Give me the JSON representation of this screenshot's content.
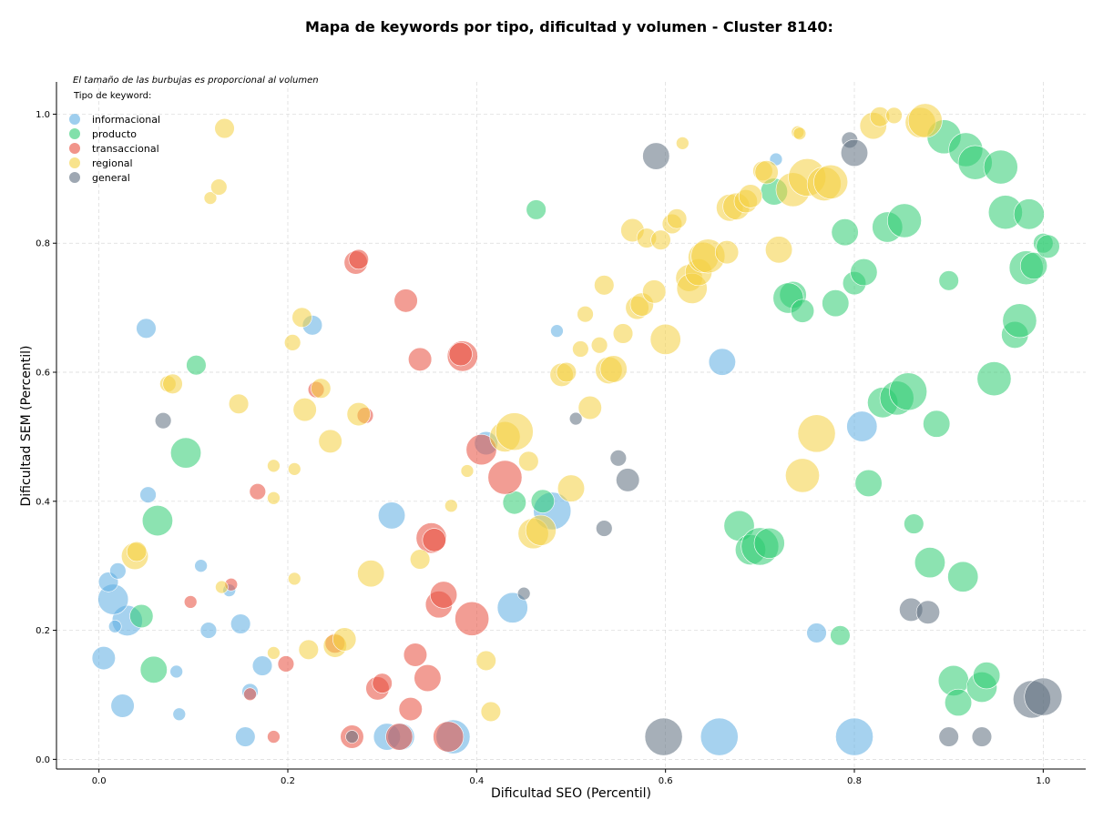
{
  "chart_data": {
    "type": "scatter",
    "title": "Mapa de keywords por tipo, dificultad y volumen - Cluster 8140:",
    "xlabel": "Dificultad SEO (Percentil)",
    "ylabel": "Dificultad SEM (Percentil)",
    "xlim": [
      -0.045,
      1.045
    ],
    "ylim": [
      -0.015,
      1.05
    ],
    "xticks": [
      "0.0",
      "0.2",
      "0.4",
      "0.6",
      "0.8",
      "1.0"
    ],
    "yticks": [
      "0.0",
      "0.2",
      "0.4",
      "0.6",
      "0.8",
      "1.0"
    ],
    "grid": true,
    "legend_position": "top-left",
    "note": "El tamaño de las burbujas es proporcional al volumen",
    "legend_title": "Tipo de keyword:",
    "series": [
      {
        "name": "informacional",
        "color": "#5DADE2",
        "points": [
          [
            0.005,
            0.157,
            2
          ],
          [
            0.025,
            0.083,
            2
          ],
          [
            0.03,
            0.215,
            3
          ],
          [
            0.015,
            0.248,
            3
          ],
          [
            0.01,
            0.275,
            1.5
          ],
          [
            0.02,
            0.292,
            1
          ],
          [
            0.017,
            0.206,
            0.5
          ],
          [
            0.052,
            0.41,
            1
          ],
          [
            0.05,
            0.668,
            1.5
          ],
          [
            0.082,
            0.136,
            0.5
          ],
          [
            0.085,
            0.07,
            0.5
          ],
          [
            0.108,
            0.3,
            0.5
          ],
          [
            0.116,
            0.2,
            1
          ],
          [
            0.138,
            0.262,
            0.5
          ],
          [
            0.15,
            0.21,
            1.5
          ],
          [
            0.16,
            0.105,
            1
          ],
          [
            0.173,
            0.145,
            1.5
          ],
          [
            0.155,
            0.035,
            1.5
          ],
          [
            0.226,
            0.673,
            1.5
          ],
          [
            0.305,
            0.035,
            2.5
          ],
          [
            0.31,
            0.378,
            2.5
          ],
          [
            0.32,
            0.035,
            2.5
          ],
          [
            0.375,
            0.035,
            3.5
          ],
          [
            0.41,
            0.49,
            2
          ],
          [
            0.438,
            0.235,
            3
          ],
          [
            0.48,
            0.385,
            4
          ],
          [
            0.485,
            0.664,
            0.5
          ],
          [
            0.657,
            0.035,
            4
          ],
          [
            0.66,
            0.616,
            2.5
          ],
          [
            0.717,
            0.93,
            0.5
          ],
          [
            0.76,
            0.196,
            1.5
          ],
          [
            0.8,
            0.035,
            4
          ],
          [
            0.808,
            0.516,
            3
          ]
        ]
      },
      {
        "name": "producto",
        "color": "#2ECC71",
        "points": [
          [
            0.045,
            0.222,
            2
          ],
          [
            0.058,
            0.139,
            2.5
          ],
          [
            0.062,
            0.37,
            3
          ],
          [
            0.092,
            0.475,
            3
          ],
          [
            0.103,
            0.611,
            1.5
          ],
          [
            0.44,
            0.398,
            2
          ],
          [
            0.47,
            0.4,
            2
          ],
          [
            0.463,
            0.852,
            1.5
          ],
          [
            0.678,
            0.362,
            3
          ],
          [
            0.69,
            0.325,
            3
          ],
          [
            0.7,
            0.33,
            4
          ],
          [
            0.71,
            0.335,
            3
          ],
          [
            0.715,
            0.88,
            2.5
          ],
          [
            0.735,
            0.72,
            2.5
          ],
          [
            0.73,
            0.715,
            3
          ],
          [
            0.745,
            0.695,
            2
          ],
          [
            0.78,
            0.707,
            2.5
          ],
          [
            0.785,
            0.192,
            1.5
          ],
          [
            0.79,
            0.817,
            2.5
          ],
          [
            0.8,
            0.738,
            2
          ],
          [
            0.81,
            0.755,
            2.5
          ],
          [
            0.815,
            0.428,
            2.5
          ],
          [
            0.83,
            0.553,
            3
          ],
          [
            0.835,
            0.825,
            3
          ],
          [
            0.845,
            0.56,
            3.5
          ],
          [
            0.853,
            0.835,
            3.5
          ],
          [
            0.857,
            0.57,
            4
          ],
          [
            0.863,
            0.365,
            1.5
          ],
          [
            0.88,
            0.305,
            3
          ],
          [
            0.887,
            0.52,
            2.5
          ],
          [
            0.895,
            0.965,
            3.5
          ],
          [
            0.9,
            0.742,
            1.5
          ],
          [
            0.905,
            0.122,
            3
          ],
          [
            0.91,
            0.088,
            2.5
          ],
          [
            0.915,
            0.283,
            3
          ],
          [
            0.918,
            0.945,
            3.5
          ],
          [
            0.928,
            0.925,
            3.5
          ],
          [
            0.935,
            0.112,
            3
          ],
          [
            0.94,
            0.13,
            2.5
          ],
          [
            0.955,
            0.918,
            3.5
          ],
          [
            0.948,
            0.59,
            3.5
          ],
          [
            0.96,
            0.848,
            3.5
          ],
          [
            0.97,
            0.658,
            2.5
          ],
          [
            0.975,
            0.68,
            3.5
          ],
          [
            0.982,
            0.762,
            3.5
          ],
          [
            0.985,
            0.845,
            3
          ],
          [
            0.99,
            0.765,
            2.5
          ],
          [
            1.0,
            0.8,
            1.5
          ],
          [
            1.005,
            0.795,
            2
          ]
        ]
      },
      {
        "name": "transaccional",
        "color": "#E74C3C",
        "points": [
          [
            0.097,
            0.244,
            0.5
          ],
          [
            0.14,
            0.271,
            0.5
          ],
          [
            0.16,
            0.101,
            0.5
          ],
          [
            0.168,
            0.415,
            1
          ],
          [
            0.185,
            0.035,
            0.5
          ],
          [
            0.198,
            0.148,
            1
          ],
          [
            0.23,
            0.573,
            1
          ],
          [
            0.25,
            0.18,
            1.5
          ],
          [
            0.268,
            0.035,
            2
          ],
          [
            0.272,
            0.77,
            2
          ],
          [
            0.275,
            0.775,
            1.5
          ],
          [
            0.282,
            0.533,
            1
          ],
          [
            0.295,
            0.11,
            2
          ],
          [
            0.3,
            0.118,
            1.5
          ],
          [
            0.318,
            0.035,
            2.5
          ],
          [
            0.325,
            0.711,
            2
          ],
          [
            0.33,
            0.078,
            2
          ],
          [
            0.335,
            0.162,
            2
          ],
          [
            0.34,
            0.62,
            2
          ],
          [
            0.348,
            0.126,
            2.5
          ],
          [
            0.352,
            0.343,
            3
          ],
          [
            0.355,
            0.34,
            2
          ],
          [
            0.36,
            0.24,
            2.5
          ],
          [
            0.365,
            0.255,
            2.5
          ],
          [
            0.37,
            0.035,
            3
          ],
          [
            0.385,
            0.625,
            3
          ],
          [
            0.383,
            0.628,
            2
          ],
          [
            0.395,
            0.218,
            3.5
          ],
          [
            0.405,
            0.48,
            3
          ],
          [
            0.43,
            0.437,
            3.5
          ]
        ]
      },
      {
        "name": "regional",
        "color": "#F4D03F",
        "points": [
          [
            0.038,
            0.315,
            2.5
          ],
          [
            0.04,
            0.322,
            1.5
          ],
          [
            0.073,
            0.582,
            1
          ],
          [
            0.078,
            0.582,
            1.5
          ],
          [
            0.118,
            0.87,
            0.5
          ],
          [
            0.127,
            0.887,
            1
          ],
          [
            0.13,
            0.267,
            0.5
          ],
          [
            0.133,
            0.978,
            1.5
          ],
          [
            0.148,
            0.551,
            1.5
          ],
          [
            0.185,
            0.455,
            0.5
          ],
          [
            0.185,
            0.405,
            0.5
          ],
          [
            0.185,
            0.165,
            0.5
          ],
          [
            0.205,
            0.646,
            1
          ],
          [
            0.207,
            0.45,
            0.5
          ],
          [
            0.207,
            0.28,
            0.5
          ],
          [
            0.215,
            0.685,
            1.5
          ],
          [
            0.218,
            0.542,
            2
          ],
          [
            0.222,
            0.17,
            1.5
          ],
          [
            0.235,
            0.575,
            1.5
          ],
          [
            0.245,
            0.493,
            2
          ],
          [
            0.25,
            0.176,
            2
          ],
          [
            0.26,
            0.186,
            2
          ],
          [
            0.275,
            0.535,
            2
          ],
          [
            0.288,
            0.288,
            2.5
          ],
          [
            0.34,
            0.31,
            1.5
          ],
          [
            0.373,
            0.393,
            0.5
          ],
          [
            0.39,
            0.447,
            0.5
          ],
          [
            0.41,
            0.153,
            1.5
          ],
          [
            0.415,
            0.074,
            1.5
          ],
          [
            0.43,
            0.5,
            3
          ],
          [
            0.44,
            0.508,
            4
          ],
          [
            0.455,
            0.462,
            1.5
          ],
          [
            0.46,
            0.35,
            3
          ],
          [
            0.468,
            0.355,
            3
          ],
          [
            0.49,
            0.596,
            2
          ],
          [
            0.495,
            0.6,
            1.5
          ],
          [
            0.5,
            0.42,
            2.5
          ],
          [
            0.51,
            0.636,
            1
          ],
          [
            0.515,
            0.69,
            1
          ],
          [
            0.52,
            0.545,
            2
          ],
          [
            0.53,
            0.642,
            1
          ],
          [
            0.535,
            0.735,
            1.5
          ],
          [
            0.54,
            0.603,
            2.5
          ],
          [
            0.545,
            0.605,
            2.5
          ],
          [
            0.555,
            0.66,
            1.5
          ],
          [
            0.565,
            0.82,
            2
          ],
          [
            0.57,
            0.7,
            2
          ],
          [
            0.575,
            0.705,
            2
          ],
          [
            0.58,
            0.808,
            1.5
          ],
          [
            0.588,
            0.725,
            2
          ],
          [
            0.595,
            0.805,
            1.5
          ],
          [
            0.6,
            0.651,
            3
          ],
          [
            0.607,
            0.83,
            1.5
          ],
          [
            0.612,
            0.838,
            1.5
          ],
          [
            0.618,
            0.955,
            0.5
          ],
          [
            0.625,
            0.746,
            2.5
          ],
          [
            0.628,
            0.73,
            3
          ],
          [
            0.635,
            0.755,
            2.5
          ],
          [
            0.64,
            0.778,
            3
          ],
          [
            0.645,
            0.78,
            3.5
          ],
          [
            0.665,
            0.786,
            2
          ],
          [
            0.668,
            0.855,
            2.5
          ],
          [
            0.675,
            0.857,
            2.5
          ],
          [
            0.685,
            0.865,
            2
          ],
          [
            0.69,
            0.873,
            2
          ],
          [
            0.703,
            0.912,
            1.5
          ],
          [
            0.707,
            0.91,
            2
          ],
          [
            0.72,
            0.79,
            2.5
          ],
          [
            0.735,
            0.883,
            3.5
          ],
          [
            0.74,
            0.972,
            0.5
          ],
          [
            0.742,
            0.97,
            0.5
          ],
          [
            0.745,
            0.44,
            3.5
          ],
          [
            0.75,
            0.902,
            4
          ],
          [
            0.76,
            0.505,
            4
          ],
          [
            0.768,
            0.892,
            3.5
          ],
          [
            0.775,
            0.895,
            3.5
          ],
          [
            0.82,
            0.982,
            2.5
          ],
          [
            0.827,
            0.996,
            1.5
          ],
          [
            0.842,
            0.998,
            1
          ],
          [
            0.87,
            0.987,
            3
          ],
          [
            0.875,
            0.99,
            3.5
          ]
        ]
      },
      {
        "name": "general",
        "color": "#5D6D7E",
        "points": [
          [
            0.068,
            0.525,
            1
          ],
          [
            0.268,
            0.035,
            0.5
          ],
          [
            0.45,
            0.257,
            0.5
          ],
          [
            0.505,
            0.528,
            0.5
          ],
          [
            0.535,
            0.358,
            1
          ],
          [
            0.55,
            0.467,
            1
          ],
          [
            0.56,
            0.433,
            2
          ],
          [
            0.59,
            0.935,
            2.5
          ],
          [
            0.598,
            0.035,
            4
          ],
          [
            0.795,
            0.96,
            1
          ],
          [
            0.8,
            0.94,
            2.5
          ],
          [
            0.86,
            0.232,
            2
          ],
          [
            0.878,
            0.228,
            2
          ],
          [
            0.9,
            0.035,
            1.5
          ],
          [
            0.935,
            0.035,
            1.5
          ],
          [
            0.988,
            0.093,
            4
          ],
          [
            1.0,
            0.097,
            4
          ]
        ]
      }
    ]
  }
}
